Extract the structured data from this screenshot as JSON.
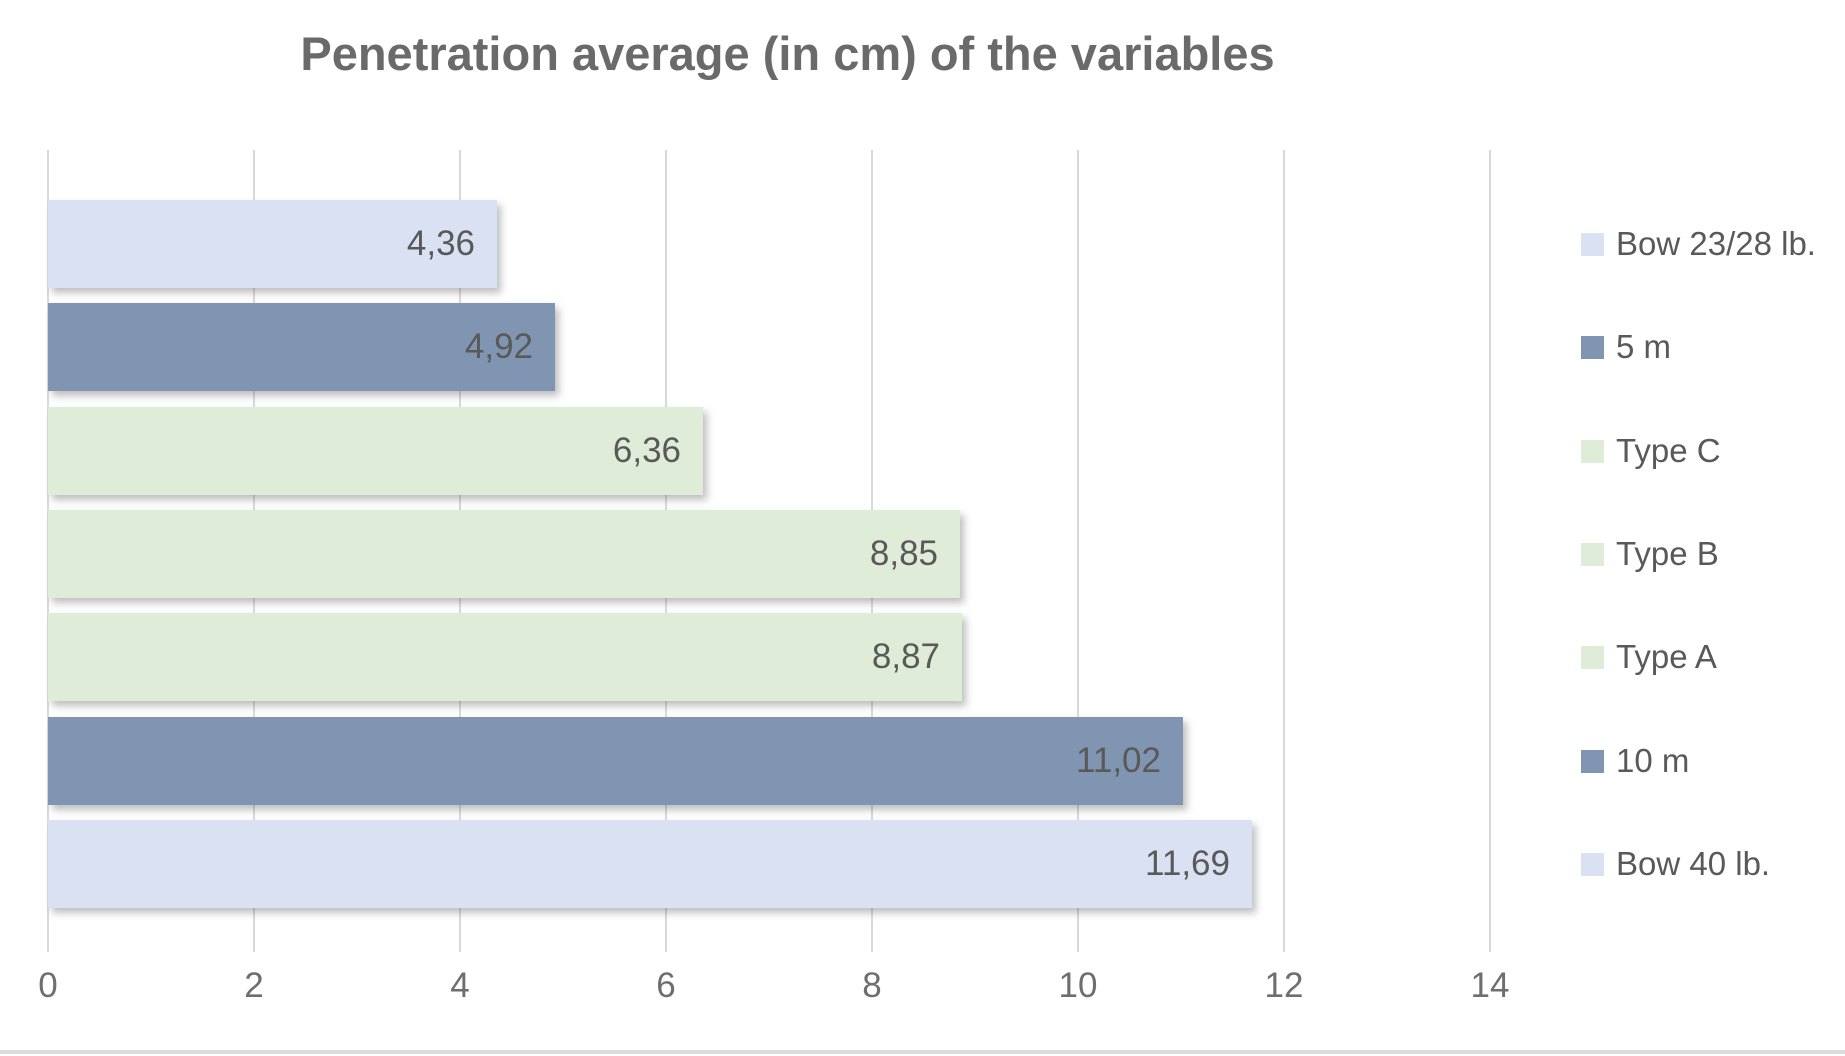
{
  "title": "Penetration average (in cm) of the variables",
  "chart_data": {
    "type": "bar",
    "orientation": "horizontal",
    "title": "Penetration average (in cm) of the variables",
    "categories": [
      "Bow 23/28 lb.",
      "5 m",
      "Type C",
      "Type B",
      "Type A",
      "10 m",
      "Bow 40 lb."
    ],
    "values": [
      4.36,
      4.92,
      6.36,
      8.85,
      8.87,
      11.02,
      11.69
    ],
    "value_labels": [
      "4,36",
      "4,92",
      "6,36",
      "8,85",
      "8,87",
      "11,02",
      "11,69"
    ],
    "bar_colors": [
      "#d9e1f2",
      "#8095b2",
      "#dfecd8",
      "#dfecd8",
      "#dfecd8",
      "#8095b2",
      "#d9e1f2"
    ],
    "xlim": [
      0,
      14
    ],
    "x_ticks": [
      "0",
      "2",
      "4",
      "6",
      "8",
      "10",
      "12",
      "14"
    ],
    "grid": "vertical",
    "legend_position": "right",
    "legend": [
      {
        "label": "Bow 23/28 lb.",
        "color": "#d9e1f2"
      },
      {
        "label": "5 m",
        "color": "#8095b2"
      },
      {
        "label": "Type C",
        "color": "#dfecd8"
      },
      {
        "label": "Type B",
        "color": "#dfecd8"
      },
      {
        "label": "Type A",
        "color": "#dfecd8"
      },
      {
        "label": "10 m",
        "color": "#8095b2"
      },
      {
        "label": "Bow 40 lb.",
        "color": "#d9e1f2"
      }
    ],
    "value_label_position": "inside-end"
  },
  "colors": {
    "background": "#ffffff",
    "gridline": "#d9d9d9",
    "title_text": "#6a6a6a",
    "data_label_text": "#595959",
    "tick_text": "#6e6e6e",
    "legend_text": "#595959",
    "accent_light_blue": "#d9e1f2",
    "accent_slate_blue": "#8095b2",
    "accent_light_green": "#dfecd8"
  }
}
